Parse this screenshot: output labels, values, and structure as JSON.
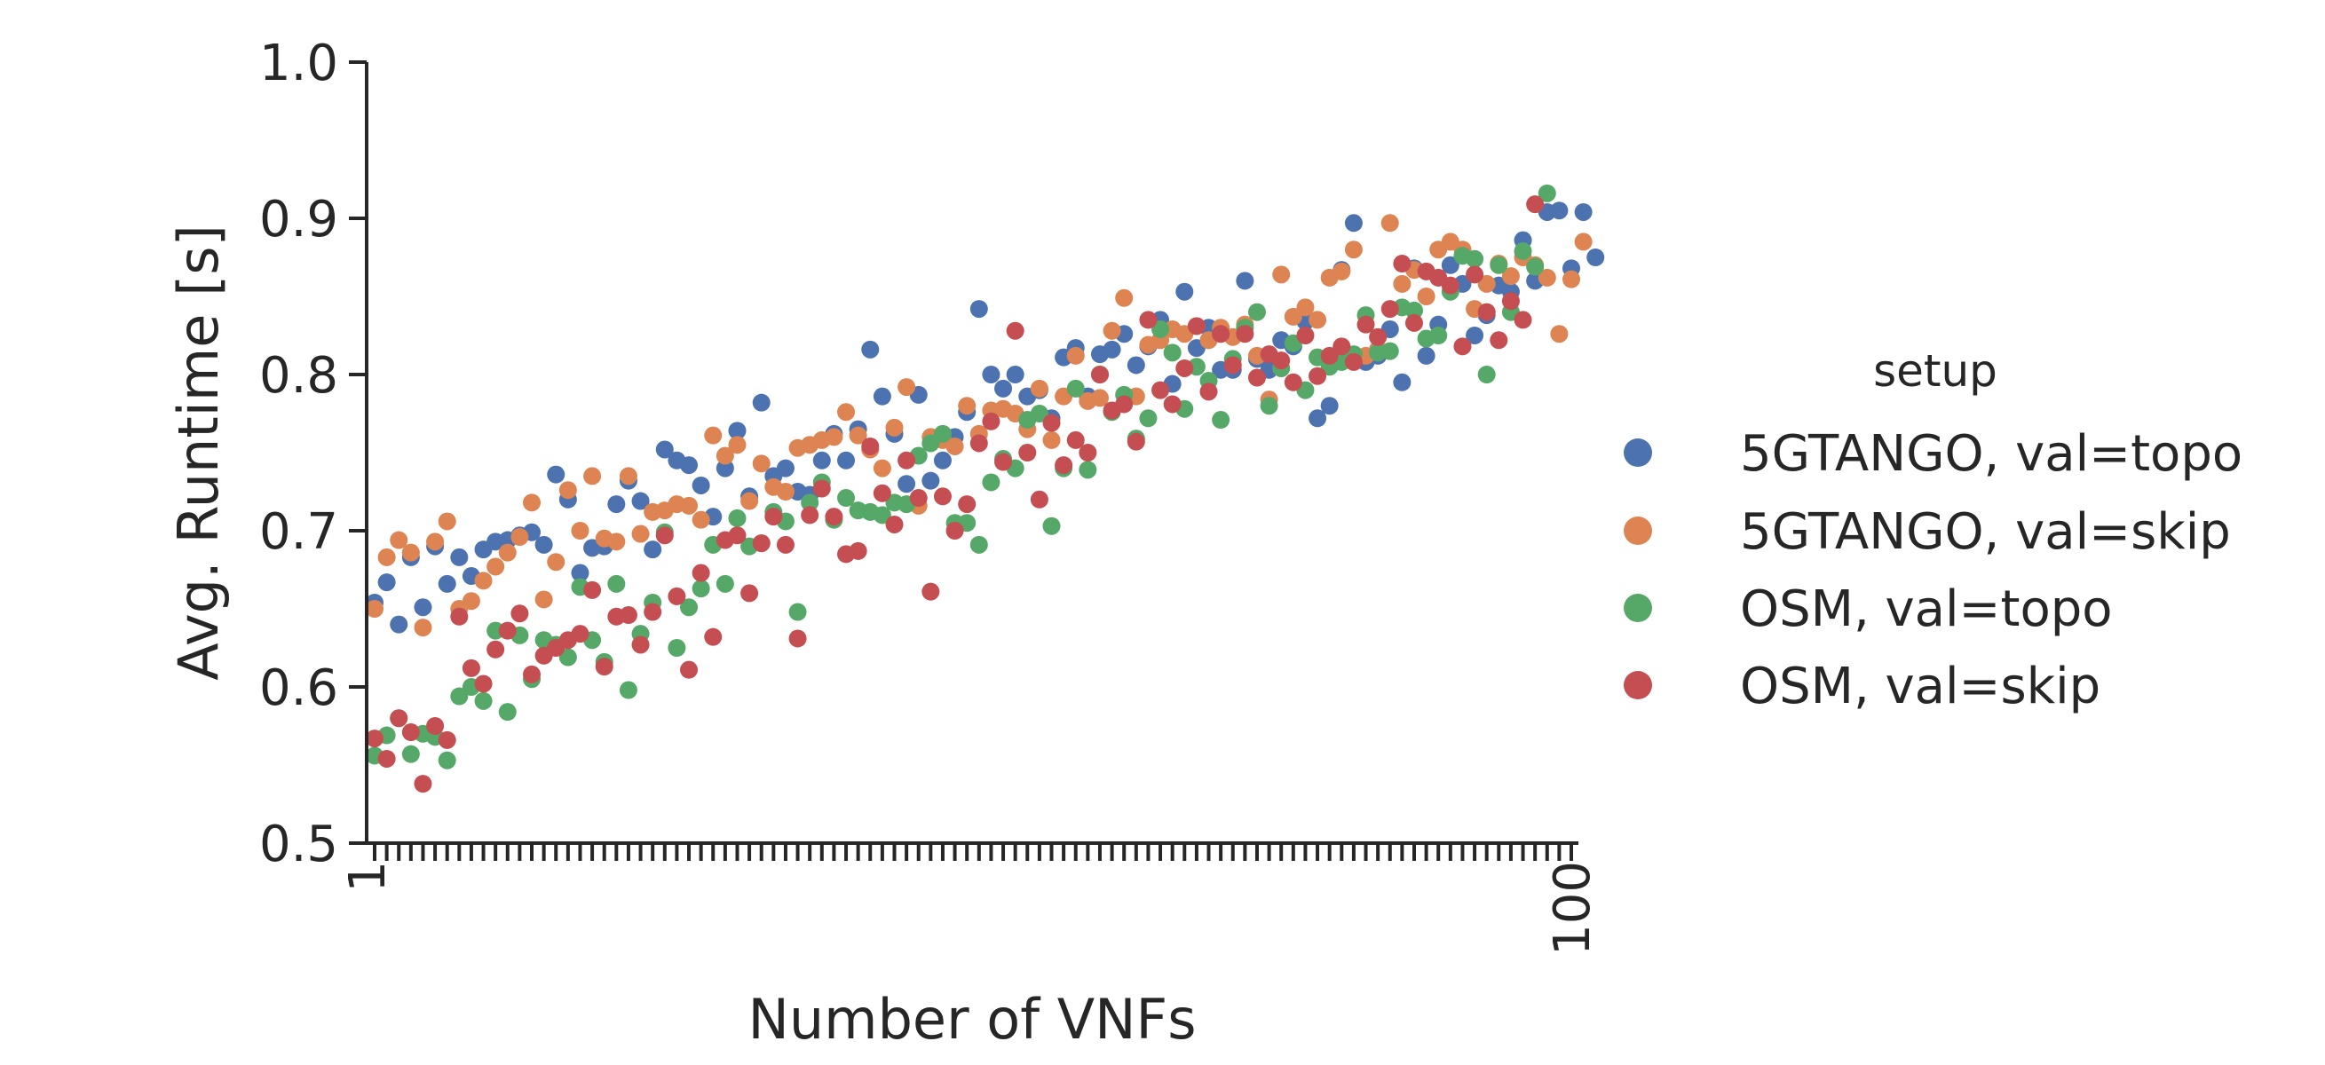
{
  "chart_data": {
    "type": "scatter",
    "title": "",
    "xlabel": "Number of VNFs",
    "ylabel": "Avg. Runtime [s]",
    "xlim": [
      1,
      100
    ],
    "ylim": [
      0.5,
      1.0
    ],
    "x_ticks_labeled": [
      "1",
      "100"
    ],
    "y_ticks": [
      "0.5",
      "0.6",
      "0.7",
      "0.8",
      "0.9",
      "1.0"
    ],
    "grid": false,
    "legend_title": "setup",
    "legend_position": "right",
    "series": [
      {
        "name": "5GTANGO, val=topo",
        "color": "#4c72b0",
        "values": [
          0.654,
          0.667,
          0.64,
          0.683,
          0.651,
          0.69,
          0.666,
          0.683,
          0.671,
          0.688,
          0.693,
          0.694,
          0.697,
          0.699,
          0.691,
          0.736,
          0.72,
          0.673,
          0.689,
          0.69,
          0.717,
          0.732,
          0.719,
          0.688,
          0.752,
          0.745,
          0.742,
          0.729,
          0.709,
          0.74,
          0.764,
          0.722,
          0.782,
          0.735,
          0.74,
          0.725,
          0.723,
          0.745,
          0.762,
          0.745,
          0.765,
          0.816,
          0.786,
          0.762,
          0.73,
          0.787,
          0.732,
          0.745,
          0.76,
          0.776,
          0.842,
          0.8,
          0.791,
          0.8,
          0.786,
          0.79,
          0.772,
          0.811,
          0.817,
          0.786,
          0.813,
          0.816,
          0.826,
          0.806,
          0.818,
          0.835,
          0.794,
          0.853,
          0.817,
          0.83,
          0.803,
          0.803,
          0.86,
          0.81,
          0.803,
          0.822,
          0.818,
          0.834,
          0.772,
          0.78,
          0.867,
          0.897,
          0.808,
          0.812,
          0.829,
          0.795,
          0.868,
          0.812,
          0.832,
          0.87,
          0.858,
          0.825,
          0.838,
          0.857,
          0.853,
          0.886,
          0.86,
          0.904,
          0.905,
          0.868,
          0.904,
          0.875
        ]
      },
      {
        "name": "5GTANGO, val=skip",
        "color": "#dd8452",
        "values": [
          0.65,
          0.683,
          0.694,
          0.686,
          0.638,
          0.693,
          0.706,
          0.65,
          0.655,
          0.668,
          0.677,
          0.686,
          0.696,
          0.718,
          0.656,
          0.68,
          0.726,
          0.7,
          0.735,
          0.695,
          0.693,
          0.735,
          0.698,
          0.712,
          0.713,
          0.717,
          0.716,
          0.707,
          0.761,
          0.748,
          0.755,
          0.719,
          0.743,
          0.728,
          0.725,
          0.753,
          0.755,
          0.758,
          0.76,
          0.776,
          0.761,
          0.752,
          0.74,
          0.766,
          0.792,
          0.716,
          0.76,
          0.758,
          0.754,
          0.78,
          0.762,
          0.777,
          0.778,
          0.775,
          0.765,
          0.791,
          0.758,
          0.786,
          0.812,
          0.783,
          0.785,
          0.828,
          0.849,
          0.786,
          0.819,
          0.822,
          0.829,
          0.826,
          0.831,
          0.822,
          0.83,
          0.824,
          0.832,
          0.812,
          0.784,
          0.864,
          0.837,
          0.843,
          0.835,
          0.862,
          0.866,
          0.88,
          0.812,
          0.816,
          0.897,
          0.858,
          0.867,
          0.85,
          0.88,
          0.885,
          0.88,
          0.842,
          0.858,
          0.871,
          0.863,
          0.875,
          0.87,
          0.862,
          0.826,
          0.861,
          0.885
        ]
      },
      {
        "name": "OSM, val=topo",
        "color": "#55a868",
        "values": [
          0.556,
          0.569,
          0.58,
          0.557,
          0.57,
          0.568,
          0.553,
          0.594,
          0.6,
          0.591,
          0.636,
          0.584,
          0.633,
          0.605,
          0.63,
          0.627,
          0.619,
          0.664,
          0.63,
          0.616,
          0.666,
          0.598,
          0.634,
          0.654,
          0.699,
          0.625,
          0.651,
          0.663,
          0.691,
          0.666,
          0.708,
          0.69,
          0.692,
          0.712,
          0.706,
          0.648,
          0.718,
          0.731,
          0.707,
          0.721,
          0.713,
          0.712,
          0.71,
          0.718,
          0.717,
          0.748,
          0.756,
          0.762,
          0.705,
          0.705,
          0.691,
          0.731,
          0.746,
          0.74,
          0.771,
          0.775,
          0.703,
          0.74,
          0.791,
          0.739,
          0.8,
          0.776,
          0.787,
          0.759,
          0.772,
          0.829,
          0.814,
          0.778,
          0.805,
          0.796,
          0.771,
          0.81,
          0.83,
          0.84,
          0.78,
          0.804,
          0.82,
          0.79,
          0.811,
          0.805,
          0.808,
          0.813,
          0.838,
          0.814,
          0.815,
          0.843,
          0.841,
          0.823,
          0.825,
          0.853,
          0.876,
          0.874,
          0.8,
          0.87,
          0.84,
          0.879,
          0.869,
          0.916
        ]
      },
      {
        "name": "OSM, val=skip",
        "color": "#c44e52",
        "values": [
          0.567,
          0.554,
          0.58,
          0.571,
          0.538,
          0.575,
          0.566,
          0.645,
          0.612,
          0.602,
          0.624,
          0.636,
          0.647,
          0.608,
          0.62,
          0.625,
          0.63,
          0.634,
          0.662,
          0.613,
          0.645,
          0.646,
          0.627,
          0.648,
          0.697,
          0.658,
          0.611,
          0.673,
          0.632,
          0.694,
          0.697,
          0.66,
          0.692,
          0.709,
          0.691,
          0.631,
          0.71,
          0.727,
          0.709,
          0.685,
          0.687,
          0.754,
          0.724,
          0.704,
          0.745,
          0.721,
          0.661,
          0.722,
          0.7,
          0.717,
          0.756,
          0.77,
          0.744,
          0.828,
          0.75,
          0.72,
          0.769,
          0.742,
          0.758,
          0.75,
          0.8,
          0.777,
          0.781,
          0.757,
          0.835,
          0.79,
          0.781,
          0.804,
          0.831,
          0.789,
          0.826,
          0.806,
          0.826,
          0.798,
          0.813,
          0.809,
          0.795,
          0.825,
          0.799,
          0.812,
          0.818,
          0.808,
          0.832,
          0.824,
          0.842,
          0.871,
          0.833,
          0.866,
          0.862,
          0.857,
          0.818,
          0.864,
          0.84,
          0.822,
          0.847,
          0.835,
          0.909
        ]
      }
    ]
  }
}
